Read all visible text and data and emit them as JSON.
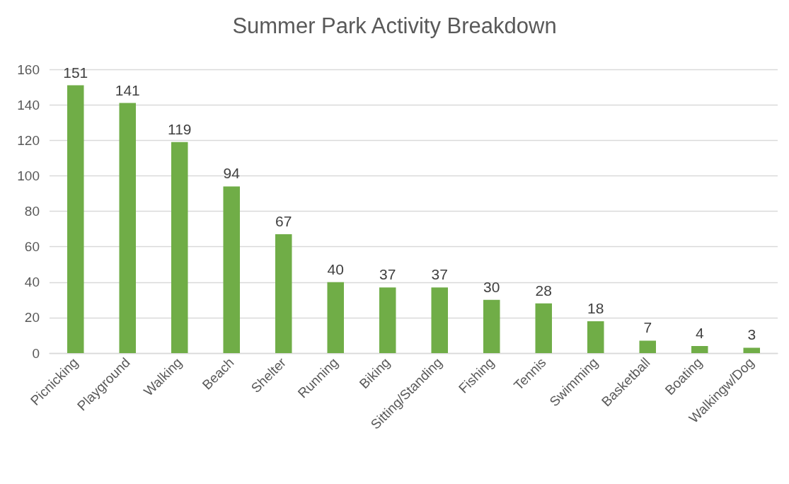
{
  "chart_data": {
    "type": "bar",
    "title": "Summer Park Activity Breakdown",
    "categories": [
      "Picnicking",
      "Playground",
      "Walking",
      "Beach",
      "Shelter",
      "Running",
      "Biking",
      "Sitting/Standing",
      "Fishing",
      "Tennis",
      "Swimming",
      "Basketball",
      "Boating",
      "Walkingw/Dog"
    ],
    "values": [
      151,
      141,
      119,
      94,
      67,
      40,
      37,
      37,
      30,
      28,
      18,
      7,
      4,
      3
    ],
    "color": "#70ad47",
    "ylim": [
      0,
      160
    ],
    "yticks": [
      0,
      20,
      40,
      60,
      80,
      100,
      120,
      140,
      160
    ],
    "grid": "y",
    "data_labels": true
  }
}
